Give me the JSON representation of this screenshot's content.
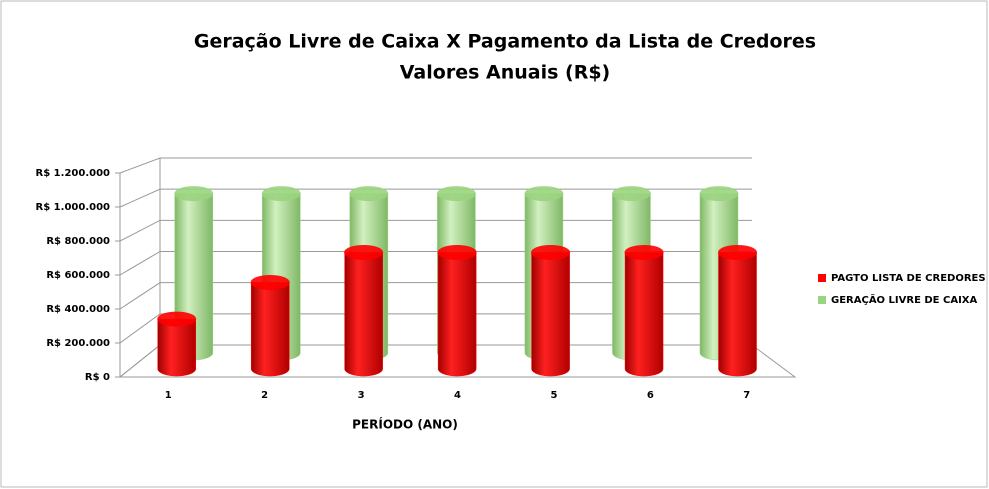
{
  "chart_data": {
    "type": "cylinder3d",
    "title": "Geração Livre de Caixa X Pagamento da Lista de Credores",
    "subtitle": "Valores Anuais (R$)",
    "x_label": "PERÍODO (ANO)",
    "categories": [
      "1",
      "2",
      "3",
      "4",
      "5",
      "6",
      "7"
    ],
    "series": [
      {
        "name": "PAGTO LISTA DE CREDORES",
        "color": "#ff0000",
        "values": [
          300000,
          520000,
          700000,
          700000,
          700000,
          700000,
          700000
        ]
      },
      {
        "name": "GERAÇÃO LIVRE DE CAIXA",
        "color": "#9bd47f",
        "values": [
          1000000,
          1000000,
          1000000,
          1000000,
          1000000,
          1000000,
          1000000
        ]
      }
    ],
    "ylim": [
      0,
      1200000
    ],
    "yticks": [
      {
        "value": 0,
        "label": "R$ 0"
      },
      {
        "value": 200000,
        "label": "R$ 200.000"
      },
      {
        "value": 400000,
        "label": "R$ 400.000"
      },
      {
        "value": 600000,
        "label": "R$ 600.000"
      },
      {
        "value": 800000,
        "label": "R$ 800.000"
      },
      {
        "value": 1000000,
        "label": "R$ 1.000.000"
      },
      {
        "value": 1200000,
        "label": "R$ 1.200.000"
      }
    ],
    "grid": true,
    "legend": "right"
  }
}
